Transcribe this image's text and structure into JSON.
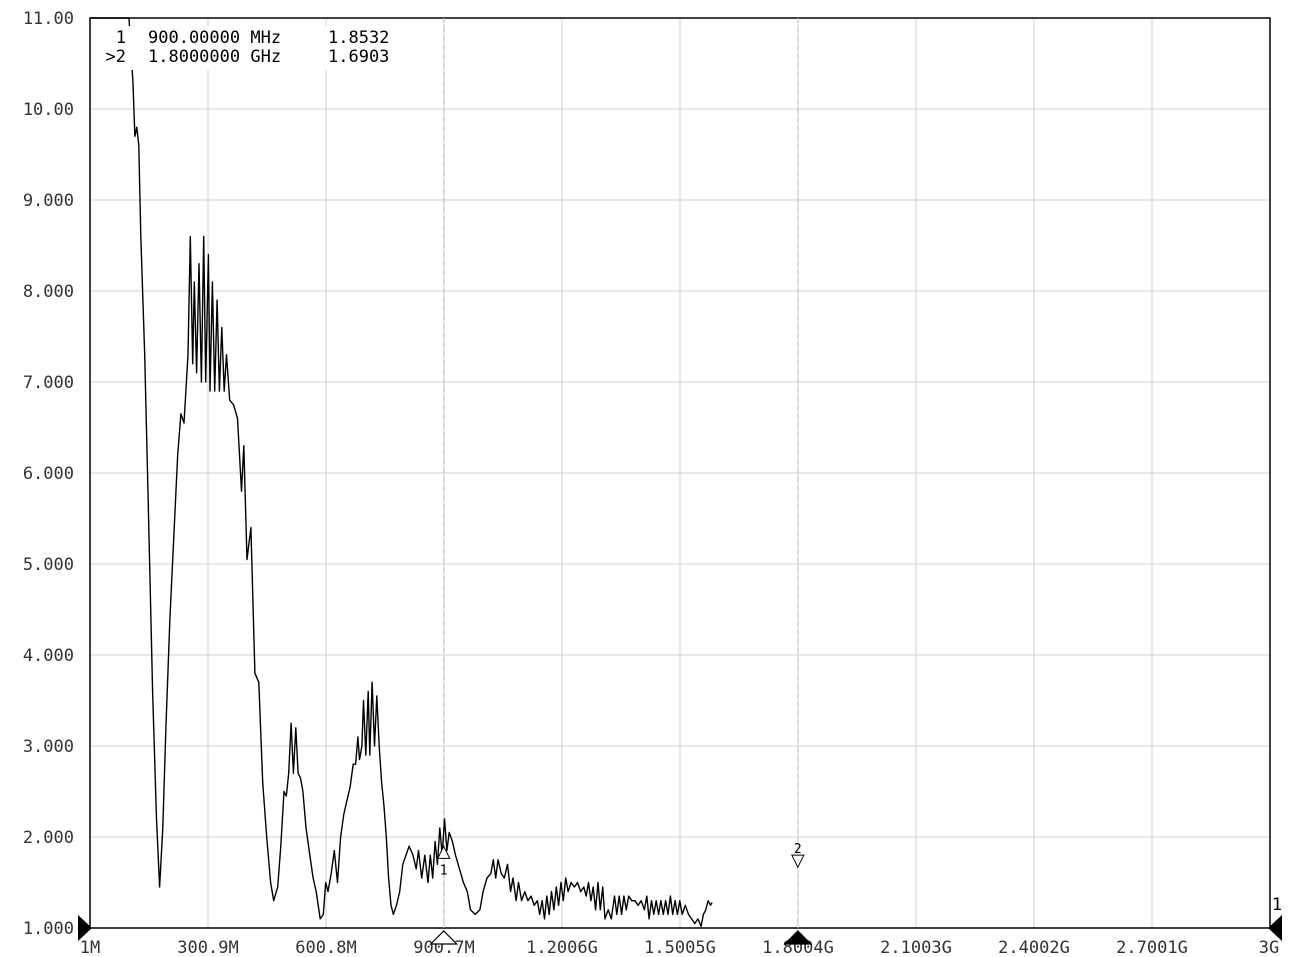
{
  "chart_data": {
    "type": "line",
    "title": "",
    "xlabel": "",
    "ylabel": "",
    "xlim": [
      1,
      3000
    ],
    "ylim": [
      1.0,
      11.0
    ],
    "grid": true,
    "y_ticks": [
      {
        "v": 11,
        "label": "11.00"
      },
      {
        "v": 10,
        "label": "10.00"
      },
      {
        "v": 9,
        "label": "9.000"
      },
      {
        "v": 8,
        "label": "8.000"
      },
      {
        "v": 7,
        "label": "7.000"
      },
      {
        "v": 6,
        "label": "6.000"
      },
      {
        "v": 5,
        "label": "5.000"
      },
      {
        "v": 4,
        "label": "4.000"
      },
      {
        "v": 3,
        "label": "3.000"
      },
      {
        "v": 2,
        "label": "2.000"
      },
      {
        "v": 1,
        "label": "1.000"
      }
    ],
    "x_ticks": [
      {
        "v": 1,
        "label": "1M"
      },
      {
        "v": 300.9,
        "label": "300.9M"
      },
      {
        "v": 600.8,
        "label": "600.8M"
      },
      {
        "v": 900.7,
        "label": "900.7M"
      },
      {
        "v": 1200.6,
        "label": "1.2006G"
      },
      {
        "v": 1500.5,
        "label": "1.5005G"
      },
      {
        "v": 1800.4,
        "label": "1.8004G"
      },
      {
        "v": 2100.3,
        "label": "2.1003G"
      },
      {
        "v": 2400.2,
        "label": "2.4002G"
      },
      {
        "v": 2700.1,
        "label": "2.7001G"
      },
      {
        "v": 3000,
        "label": "3G"
      }
    ],
    "marker_table": [
      {
        "id": "1",
        "freq": "900.00000 MHz",
        "value": "1.8532"
      },
      {
        "id": ">2",
        "freq": "1.8000000 GHz",
        "value": "1.6903"
      }
    ],
    "markers": [
      {
        "label": "1",
        "x": 900,
        "y": 1.8532
      },
      {
        "label": "2",
        "x": 1800,
        "y": 1.6903
      }
    ],
    "reference_marker_label": "1",
    "series": [
      {
        "color": "#000000",
        "points": [
          [
            1,
            11.0
          ],
          [
            100,
            11.0
          ],
          [
            110,
            10.3
          ],
          [
            115,
            9.7
          ],
          [
            120,
            9.8
          ],
          [
            125,
            9.6
          ],
          [
            130,
            8.6
          ],
          [
            140,
            7.3
          ],
          [
            150,
            5.5
          ],
          [
            160,
            3.6
          ],
          [
            170,
            2.2
          ],
          [
            178,
            1.45
          ],
          [
            186,
            2.1
          ],
          [
            194,
            3.2
          ],
          [
            204,
            4.4
          ],
          [
            214,
            5.3
          ],
          [
            224,
            6.2
          ],
          [
            232,
            6.65
          ],
          [
            240,
            6.55
          ],
          [
            250,
            7.3
          ],
          [
            256,
            8.6
          ],
          [
            262,
            7.2
          ],
          [
            266,
            8.1
          ],
          [
            272,
            7.1
          ],
          [
            278,
            8.3
          ],
          [
            284,
            7.0
          ],
          [
            290,
            8.6
          ],
          [
            295,
            7.0
          ],
          [
            302,
            8.4
          ],
          [
            306,
            6.9
          ],
          [
            312,
            8.1
          ],
          [
            318,
            6.9
          ],
          [
            324,
            7.9
          ],
          [
            330,
            6.9
          ],
          [
            336,
            7.6
          ],
          [
            342,
            6.9
          ],
          [
            348,
            7.3
          ],
          [
            356,
            6.8
          ],
          [
            366,
            6.75
          ],
          [
            376,
            6.6
          ],
          [
            386,
            5.8
          ],
          [
            392,
            6.3
          ],
          [
            400,
            5.05
          ],
          [
            410,
            5.4
          ],
          [
            420,
            3.8
          ],
          [
            430,
            3.7
          ],
          [
            440,
            2.6
          ],
          [
            450,
            2.0
          ],
          [
            460,
            1.5
          ],
          [
            468,
            1.3
          ],
          [
            478,
            1.45
          ],
          [
            486,
            1.9
          ],
          [
            494,
            2.5
          ],
          [
            500,
            2.45
          ],
          [
            506,
            2.7
          ],
          [
            512,
            3.25
          ],
          [
            518,
            2.7
          ],
          [
            524,
            3.2
          ],
          [
            530,
            2.7
          ],
          [
            536,
            2.65
          ],
          [
            542,
            2.5
          ],
          [
            550,
            2.1
          ],
          [
            558,
            1.85
          ],
          [
            568,
            1.55
          ],
          [
            576,
            1.4
          ],
          [
            586,
            1.1
          ],
          [
            594,
            1.15
          ],
          [
            600,
            1.5
          ],
          [
            606,
            1.4
          ],
          [
            614,
            1.6
          ],
          [
            622,
            1.85
          ],
          [
            630,
            1.5
          ],
          [
            638,
            2.0
          ],
          [
            646,
            2.25
          ],
          [
            654,
            2.4
          ],
          [
            662,
            2.55
          ],
          [
            670,
            2.8
          ],
          [
            676,
            2.8
          ],
          [
            682,
            3.1
          ],
          [
            686,
            2.85
          ],
          [
            692,
            3.0
          ],
          [
            696,
            3.5
          ],
          [
            702,
            2.9
          ],
          [
            708,
            3.6
          ],
          [
            712,
            2.9
          ],
          [
            718,
            3.7
          ],
          [
            724,
            3.0
          ],
          [
            730,
            3.55
          ],
          [
            736,
            3.0
          ],
          [
            742,
            2.6
          ],
          [
            748,
            2.35
          ],
          [
            754,
            2.0
          ],
          [
            760,
            1.55
          ],
          [
            766,
            1.25
          ],
          [
            772,
            1.15
          ],
          [
            780,
            1.25
          ],
          [
            788,
            1.4
          ],
          [
            796,
            1.7
          ],
          [
            804,
            1.8
          ],
          [
            812,
            1.9
          ],
          [
            822,
            1.8
          ],
          [
            830,
            1.65
          ],
          [
            836,
            1.85
          ],
          [
            844,
            1.55
          ],
          [
            852,
            1.8
          ],
          [
            860,
            1.5
          ],
          [
            866,
            1.8
          ],
          [
            872,
            1.55
          ],
          [
            878,
            1.95
          ],
          [
            884,
            1.7
          ],
          [
            890,
            2.1
          ],
          [
            896,
            1.8
          ],
          [
            902,
            2.2
          ],
          [
            908,
            1.85
          ],
          [
            914,
            2.05
          ],
          [
            922,
            1.95
          ],
          [
            930,
            1.8
          ],
          [
            940,
            1.65
          ],
          [
            950,
            1.5
          ],
          [
            960,
            1.4
          ],
          [
            968,
            1.2
          ],
          [
            980,
            1.15
          ],
          [
            992,
            1.2
          ],
          [
            1000,
            1.4
          ],
          [
            1010,
            1.55
          ],
          [
            1020,
            1.6
          ],
          [
            1026,
            1.75
          ],
          [
            1032,
            1.55
          ],
          [
            1038,
            1.75
          ],
          [
            1046,
            1.6
          ],
          [
            1054,
            1.55
          ],
          [
            1062,
            1.7
          ],
          [
            1070,
            1.4
          ],
          [
            1076,
            1.55
          ],
          [
            1084,
            1.3
          ],
          [
            1090,
            1.5
          ],
          [
            1098,
            1.3
          ],
          [
            1106,
            1.4
          ],
          [
            1114,
            1.3
          ],
          [
            1122,
            1.35
          ],
          [
            1130,
            1.25
          ],
          [
            1138,
            1.3
          ],
          [
            1144,
            1.15
          ],
          [
            1150,
            1.3
          ],
          [
            1156,
            1.1
          ],
          [
            1162,
            1.35
          ],
          [
            1168,
            1.15
          ],
          [
            1174,
            1.4
          ],
          [
            1180,
            1.2
          ],
          [
            1186,
            1.45
          ],
          [
            1192,
            1.25
          ],
          [
            1198,
            1.5
          ],
          [
            1204,
            1.3
          ],
          [
            1210,
            1.55
          ],
          [
            1216,
            1.4
          ],
          [
            1224,
            1.5
          ],
          [
            1232,
            1.45
          ],
          [
            1240,
            1.5
          ],
          [
            1248,
            1.4
          ],
          [
            1256,
            1.45
          ],
          [
            1262,
            1.35
          ],
          [
            1268,
            1.5
          ],
          [
            1274,
            1.3
          ],
          [
            1280,
            1.45
          ],
          [
            1286,
            1.2
          ],
          [
            1292,
            1.5
          ],
          [
            1298,
            1.2
          ],
          [
            1304,
            1.45
          ],
          [
            1310,
            1.1
          ],
          [
            1318,
            1.2
          ],
          [
            1326,
            1.1
          ],
          [
            1334,
            1.35
          ],
          [
            1340,
            1.15
          ],
          [
            1346,
            1.35
          ],
          [
            1352,
            1.15
          ],
          [
            1358,
            1.35
          ],
          [
            1364,
            1.2
          ],
          [
            1370,
            1.35
          ],
          [
            1378,
            1.3
          ],
          [
            1386,
            1.3
          ],
          [
            1394,
            1.25
          ],
          [
            1402,
            1.3
          ],
          [
            1410,
            1.2
          ],
          [
            1416,
            1.35
          ],
          [
            1422,
            1.1
          ],
          [
            1428,
            1.3
          ],
          [
            1434,
            1.15
          ],
          [
            1440,
            1.3
          ],
          [
            1446,
            1.15
          ],
          [
            1452,
            1.3
          ],
          [
            1458,
            1.15
          ],
          [
            1464,
            1.3
          ],
          [
            1470,
            1.15
          ],
          [
            1476,
            1.35
          ],
          [
            1482,
            1.15
          ],
          [
            1488,
            1.3
          ],
          [
            1494,
            1.15
          ],
          [
            1500,
            1.3
          ],
          [
            1506,
            1.15
          ],
          [
            1514,
            1.25
          ],
          [
            1522,
            1.15
          ],
          [
            1530,
            1.1
          ],
          [
            1538,
            1.05
          ],
          [
            1546,
            1.1
          ],
          [
            1554,
            1.02
          ],
          [
            1560,
            1.15
          ],
          [
            1566,
            1.2
          ],
          [
            1572,
            1.3
          ],
          [
            1578,
            1.25
          ],
          [
            1582,
            1.28
          ]
        ]
      }
    ]
  }
}
